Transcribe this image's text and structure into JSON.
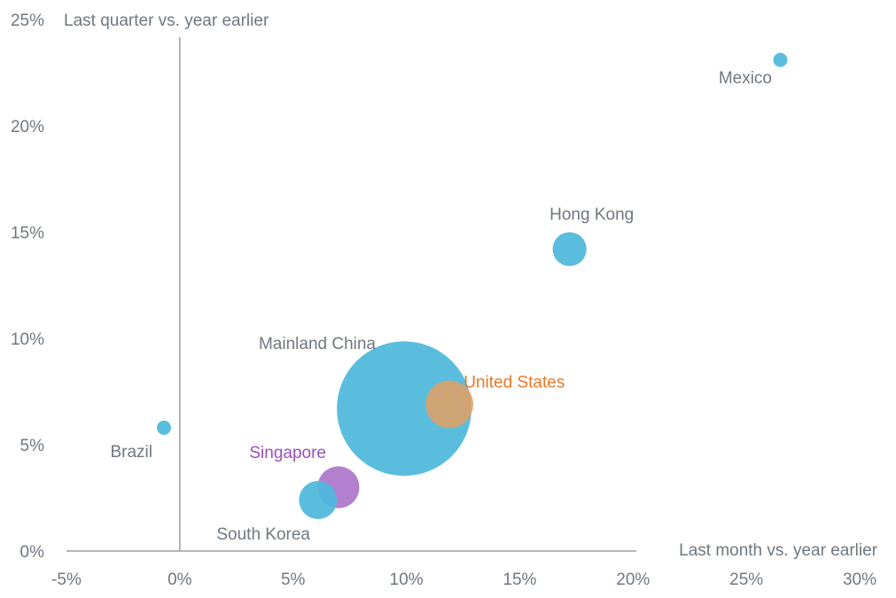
{
  "chart_data": {
    "type": "scatter",
    "variant": "bubble",
    "title": "",
    "xlabel": "Last month vs. year earlier",
    "ylabel": "Last quarter vs. year earlier",
    "xlim": [
      -5,
      30
    ],
    "ylim": [
      0,
      25
    ],
    "x_ticks": [
      "-5%",
      "0%",
      "5%",
      "10%",
      "15%",
      "20%",
      "25%",
      "30%"
    ],
    "y_ticks": [
      "0%",
      "5%",
      "10%",
      "15%",
      "20%",
      "25%"
    ],
    "grid": false,
    "legend": "none",
    "points": [
      {
        "label": "Mexico",
        "x": 26.5,
        "y": 23.1,
        "size": 1,
        "color": "#4db8dc",
        "label_color": "#6f7780",
        "label_pos": "below-left"
      },
      {
        "label": "Hong Kong",
        "x": 17.2,
        "y": 14.2,
        "size": 38,
        "color": "#4db8dc",
        "label_color": "#6f7780",
        "label_pos": "above"
      },
      {
        "label": "Mainland China",
        "x": 9.9,
        "y": 6.7,
        "size": 600,
        "color": "#4db8dc",
        "label_color": "#6f7780",
        "label_pos": "upper-left"
      },
      {
        "label": "United States",
        "x": 11.9,
        "y": 6.9,
        "size": 75,
        "color": "#e3a062",
        "label_color": "#e8792a",
        "label_pos": "upper-right"
      },
      {
        "label": "Brazil",
        "x": -0.7,
        "y": 5.8,
        "size": 3,
        "color": "#4db8dc",
        "label_color": "#6f7780",
        "label_pos": "below-left"
      },
      {
        "label": "Singapore",
        "x": 7.0,
        "y": 3.0,
        "size": 58,
        "color": "#a46ac6",
        "label_color": "#9a4fbb",
        "label_pos": "upper-left"
      },
      {
        "label": "South Korea",
        "x": 6.1,
        "y": 2.4,
        "size": 48,
        "color": "#4db8dc",
        "label_color": "#6f7780",
        "label_pos": "below-left"
      }
    ]
  }
}
